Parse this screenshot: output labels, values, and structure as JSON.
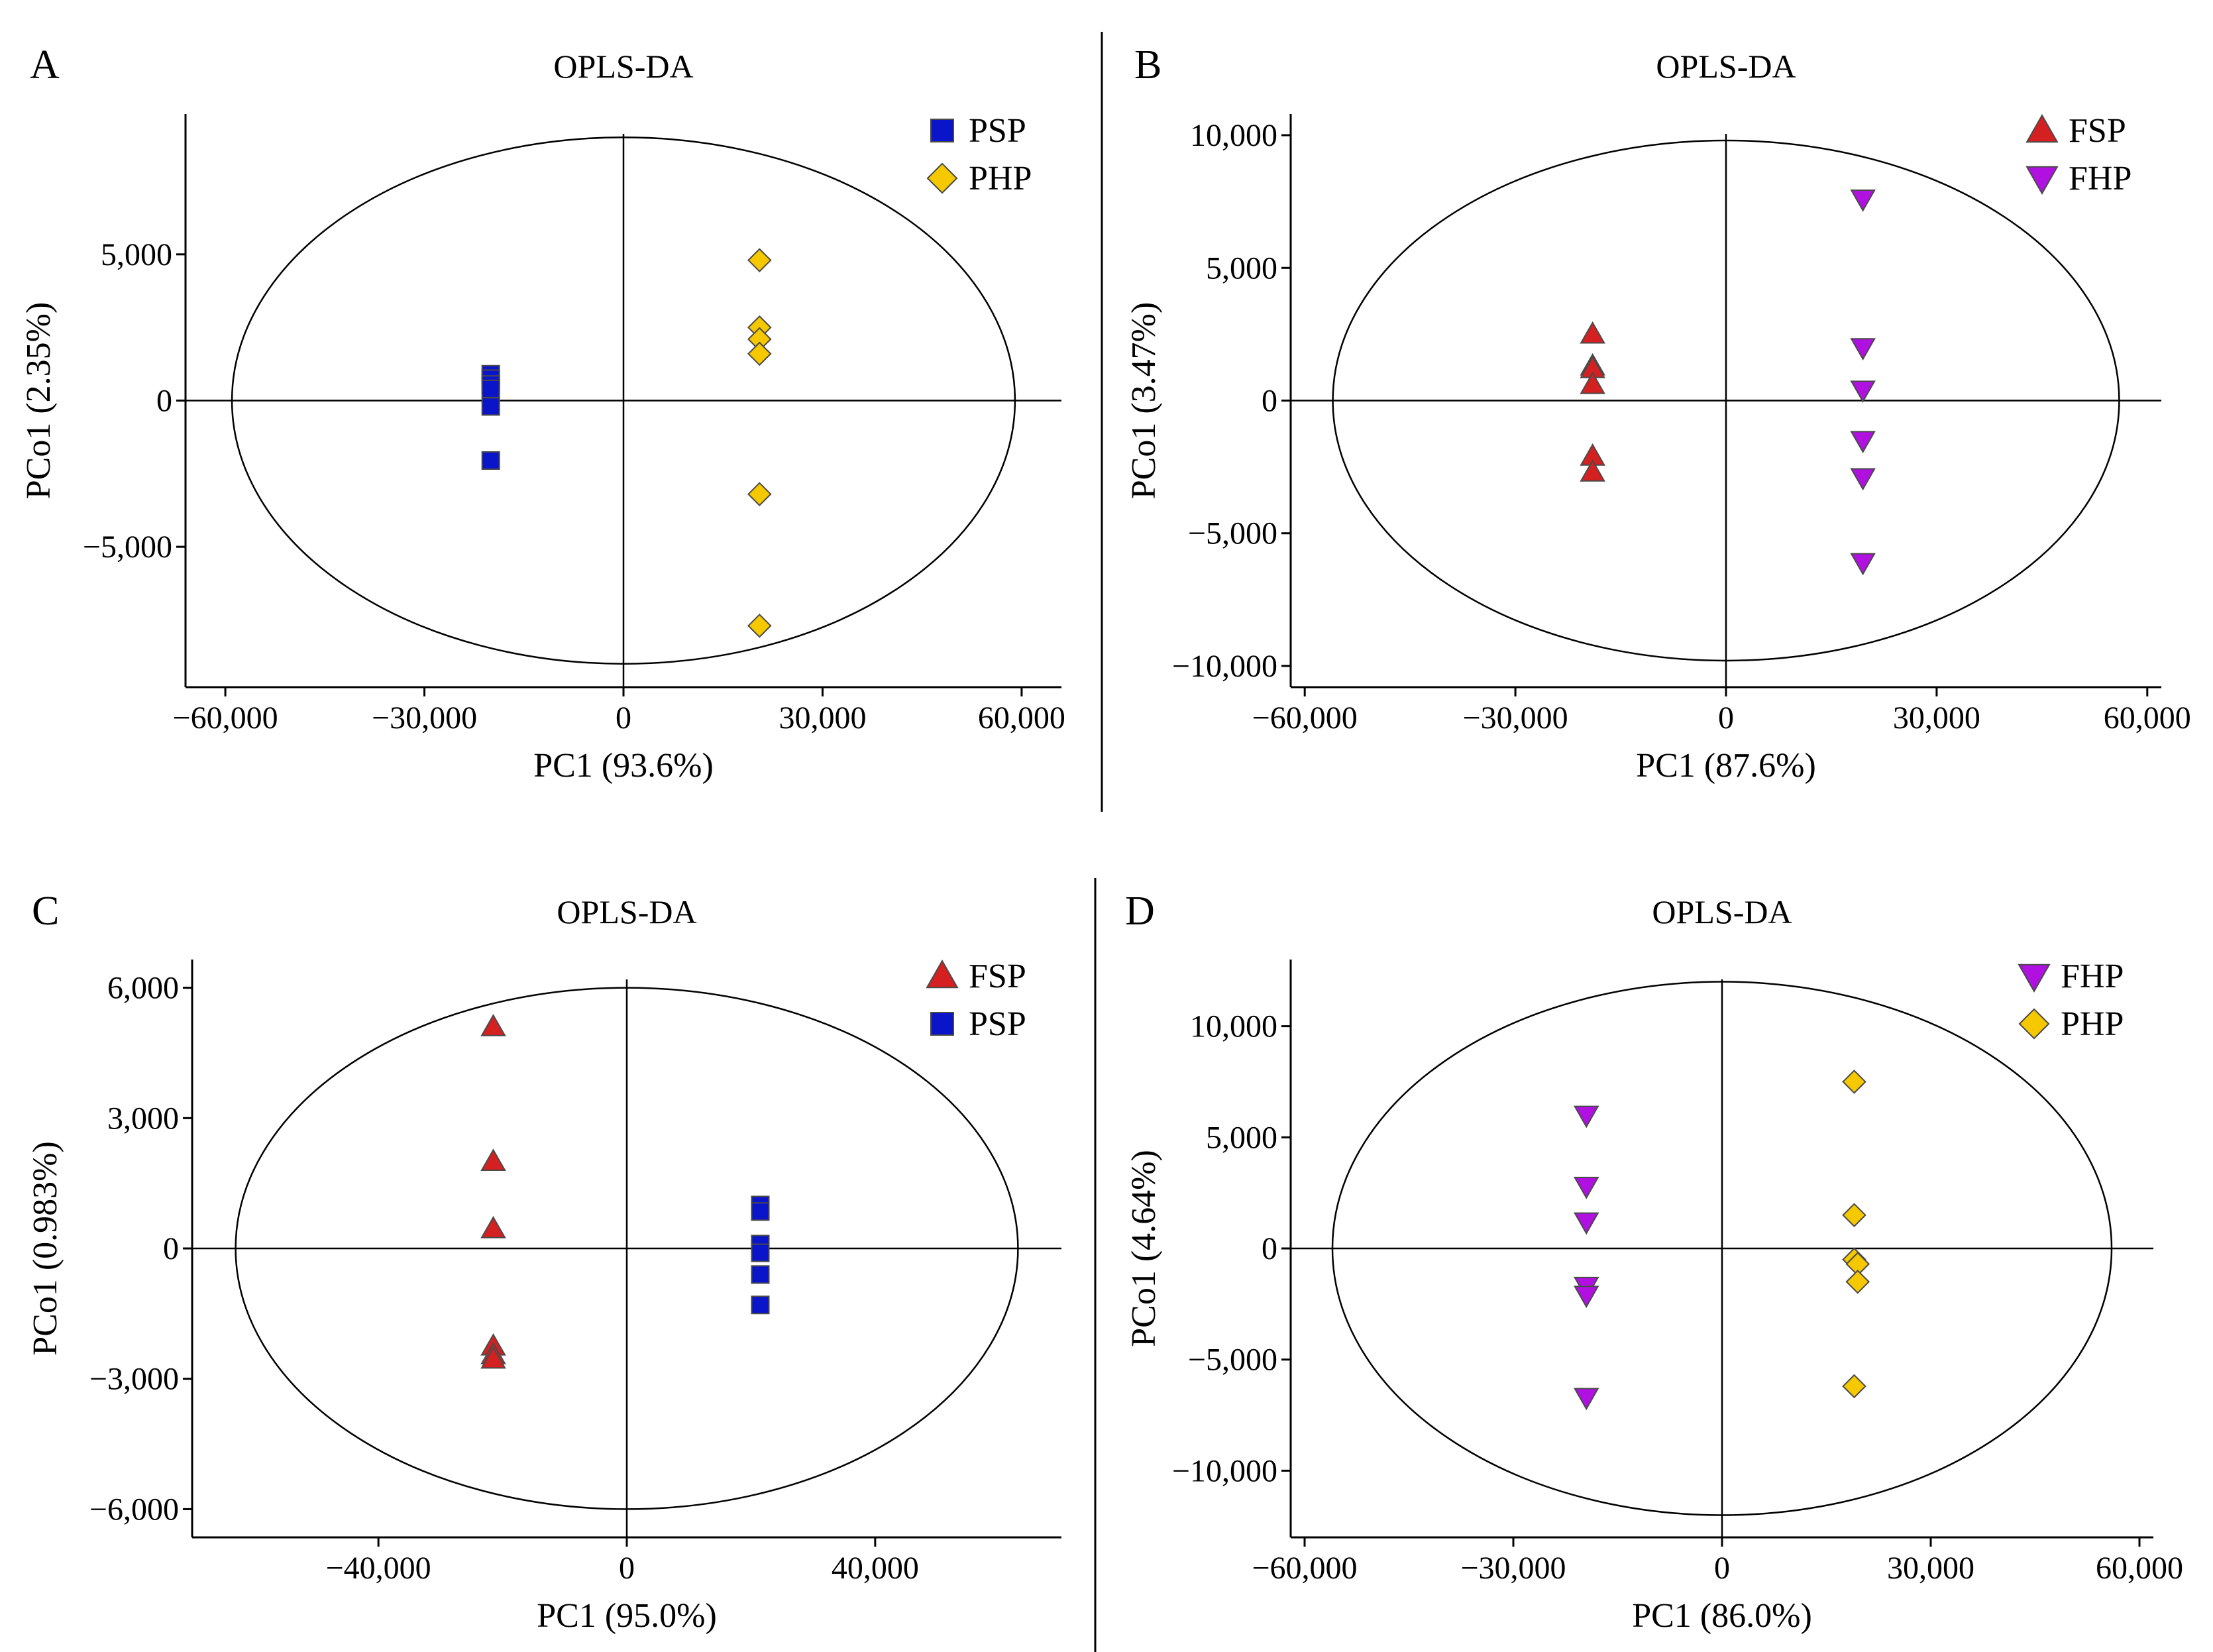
{
  "chart_data": [
    {
      "panel": "A",
      "type": "scatter",
      "title": "OPLS-DA",
      "xlabel": "PC1 (93.6%)",
      "ylabel": "PCo1 (2.35%)",
      "xlim": [
        -66000,
        66000
      ],
      "ylim": [
        -9800,
        9800
      ],
      "xticks": [
        -60000,
        -30000,
        0,
        30000,
        60000
      ],
      "xtick_labels": [
        "−60,000",
        "−30,000",
        "0",
        "30,000",
        "60,000"
      ],
      "yticks": [
        5000,
        0,
        -5000
      ],
      "ytick_labels": [
        "5,000",
        "0",
        "−5,000"
      ],
      "ellipse": {
        "rx": 59000,
        "ry": 9000
      },
      "legend_position": "top-right",
      "series": [
        {
          "name": "PSP",
          "marker": "square",
          "color": "#0a14c8",
          "points": [
            [
              -20000,
              900
            ],
            [
              -20000,
              750
            ],
            [
              -20000,
              550
            ],
            [
              -20000,
              400
            ],
            [
              -20000,
              -200
            ],
            [
              -20000,
              -2050
            ]
          ]
        },
        {
          "name": "PHP",
          "marker": "diamond",
          "color": "#f5c800",
          "points": [
            [
              20500,
              4800
            ],
            [
              20500,
              2500
            ],
            [
              20500,
              2100
            ],
            [
              20500,
              1600
            ],
            [
              20500,
              -3200
            ],
            [
              20500,
              -7700
            ]
          ]
        }
      ]
    },
    {
      "panel": "B",
      "type": "scatter",
      "title": "OPLS-DA",
      "xlabel": "PC1 (87.6%)",
      "ylabel": "PCo1 (3.47%)",
      "xlim": [
        -62000,
        62000
      ],
      "ylim": [
        -10800,
        10800
      ],
      "xticks": [
        -60000,
        -30000,
        0,
        30000,
        60000
      ],
      "xtick_labels": [
        "−60,000",
        "−30,000",
        "0",
        "30,000",
        "60,000"
      ],
      "yticks": [
        10000,
        5000,
        0,
        -5000,
        -10000
      ],
      "ytick_labels": [
        "10,000",
        "5,000",
        "0",
        "−5,000",
        "−10,000"
      ],
      "ellipse": {
        "rx": 56000,
        "ry": 9800
      },
      "legend_position": "top-right",
      "series": [
        {
          "name": "FSP",
          "marker": "triangle-up",
          "color": "#d42020",
          "points": [
            [
              -19000,
              2500
            ],
            [
              -19000,
              1300
            ],
            [
              -19000,
              1200
            ],
            [
              -19000,
              600
            ],
            [
              -19000,
              -2100
            ],
            [
              -19000,
              -2700
            ]
          ]
        },
        {
          "name": "FHP",
          "marker": "triangle-down",
          "color": "#b010e0",
          "points": [
            [
              19500,
              7600
            ],
            [
              19500,
              2000
            ],
            [
              19500,
              400
            ],
            [
              19500,
              -1500
            ],
            [
              19500,
              -2900
            ],
            [
              19500,
              -6100
            ]
          ]
        }
      ]
    },
    {
      "panel": "C",
      "type": "scatter",
      "title": "OPLS-DA",
      "xlabel": "PC1 (95.0%)",
      "ylabel": "PCo1 (0.983%)",
      "xlim": [
        -70000,
        70000
      ],
      "ylim": [
        -6650,
        6650
      ],
      "xticks": [
        -40000,
        0,
        40000
      ],
      "xtick_labels": [
        "−40,000",
        "0",
        "40,000"
      ],
      "yticks": [
        6000,
        3000,
        0,
        -3000,
        -6000
      ],
      "ytick_labels": [
        "6,000",
        "3,000",
        "0",
        "−3,000",
        "−6,000"
      ],
      "ellipse": {
        "rx": 63000,
        "ry": 6000
      },
      "legend_position": "top-right",
      "series": [
        {
          "name": "FSP",
          "marker": "triangle-up",
          "color": "#d42020",
          "points": [
            [
              -21500,
              5100
            ],
            [
              -21500,
              2000
            ],
            [
              -21500,
              450
            ],
            [
              -21500,
              -2250
            ],
            [
              -21500,
              -2450
            ],
            [
              -21500,
              -2550
            ]
          ]
        },
        {
          "name": "PSP",
          "marker": "square",
          "color": "#0a14c8",
          "points": [
            [
              21500,
              1000
            ],
            [
              21500,
              850
            ],
            [
              21500,
              100
            ],
            [
              21500,
              -100
            ],
            [
              21500,
              -600
            ],
            [
              21500,
              -1300
            ]
          ]
        }
      ]
    },
    {
      "panel": "D",
      "type": "scatter",
      "title": "OPLS-DA",
      "xlabel": "PC1 (86.0%)",
      "ylabel": "PCo1 (4.64%)",
      "xlim": [
        -62000,
        62000
      ],
      "ylim": [
        -13000,
        13000
      ],
      "xticks": [
        -60000,
        -30000,
        0,
        30000,
        60000
      ],
      "xtick_labels": [
        "−60,000",
        "−30,000",
        "0",
        "30,000",
        "60,000"
      ],
      "yticks": [
        10000,
        5000,
        0,
        -5000,
        -10000
      ],
      "ytick_labels": [
        "10,000",
        "5,000",
        "0",
        "−5,000",
        "−10,000"
      ],
      "ellipse": {
        "rx": 56000,
        "ry": 12000
      },
      "legend_position": "top-right",
      "series": [
        {
          "name": "FHP",
          "marker": "triangle-down",
          "color": "#b010e0",
          "points": [
            [
              -19500,
              6000
            ],
            [
              -19500,
              2800
            ],
            [
              -19500,
              1200
            ],
            [
              -19500,
              -1700
            ],
            [
              -19500,
              -2100
            ],
            [
              -19500,
              -6700
            ]
          ]
        },
        {
          "name": "PHP",
          "marker": "diamond",
          "color": "#f5c800",
          "points": [
            [
              19000,
              7500
            ],
            [
              19000,
              1500
            ],
            [
              19000,
              -500
            ],
            [
              19500,
              -700
            ],
            [
              19500,
              -1500
            ],
            [
              19000,
              -6200
            ]
          ]
        }
      ]
    }
  ]
}
